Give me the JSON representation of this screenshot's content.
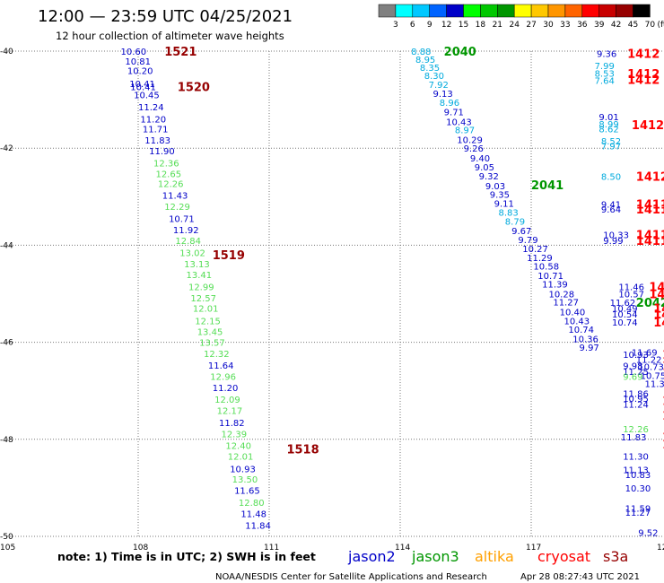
{
  "chart_data": {
    "type": "scatter",
    "title": "12:00 — 23:59 UTC 04/25/2021",
    "subtitle": "12 hour collection of altimeter wave heights",
    "colorbar": {
      "ticks": [
        "3",
        "6",
        "9",
        "12",
        "15",
        "18",
        "21",
        "24",
        "27",
        "30",
        "33",
        "36",
        "39",
        "42",
        "45",
        "70",
        "(ft)"
      ],
      "colors": [
        "#808080",
        "#00ffff",
        "#00c8ff",
        "#0064ff",
        "#0000c8",
        "#00ff00",
        "#00c800",
        "#009600",
        "#ffff00",
        "#ffc800",
        "#ff9600",
        "#ff6400",
        "#ff0000",
        "#c80000",
        "#960000",
        "#000000"
      ]
    },
    "x_ticks": [
      {
        "label": "105",
        "value": 105
      },
      {
        "label": "108",
        "value": 108
      },
      {
        "label": "111",
        "value": 111
      },
      {
        "label": "114",
        "value": 114
      },
      {
        "label": "117",
        "value": 117
      },
      {
        "label": "120",
        "value": 120
      }
    ],
    "y_ticks": [
      {
        "label": "-40",
        "value": -40
      },
      {
        "label": "-42",
        "value": -42
      },
      {
        "label": "-44",
        "value": -44
      },
      {
        "label": "-46",
        "value": -46
      },
      {
        "label": "-48",
        "value": -48
      },
      {
        "label": "-50",
        "value": -50
      }
    ],
    "xlim": [
      105,
      120
    ],
    "ylim": [
      -50,
      -40
    ],
    "grid": true,
    "satellites": [
      {
        "name": "jason2",
        "color": "#0000c8"
      },
      {
        "name": "jason3",
        "color": "#009600"
      },
      {
        "name": "altika",
        "color": "#ffa000"
      },
      {
        "name": "cryosat",
        "color": "#ff0000"
      },
      {
        "name": "s3a",
        "color": "#960000"
      }
    ],
    "time_labels": [
      {
        "text": "1521",
        "x": 108.6,
        "y": -40.0,
        "color": "#960000"
      },
      {
        "text": "1520",
        "x": 108.9,
        "y": -40.73,
        "color": "#960000"
      },
      {
        "text": "1519",
        "x": 109.7,
        "y": -44.2,
        "color": "#960000"
      },
      {
        "text": "1518",
        "x": 111.4,
        "y": -48.2,
        "color": "#960000"
      },
      {
        "text": "2040",
        "x": 115.0,
        "y": -40.0,
        "color": "#009600"
      },
      {
        "text": "2041",
        "x": 117.0,
        "y": -42.75,
        "color": "#009600"
      },
      {
        "text": "2042",
        "x": 119.4,
        "y": -45.18,
        "color": "#009600"
      },
      {
        "text": "1412",
        "x": 119.2,
        "y": -40.05,
        "color": "#ff0000"
      },
      {
        "text": "1412",
        "x": 119.2,
        "y": -40.46,
        "color": "#ff0000"
      },
      {
        "text": "1412",
        "x": 119.2,
        "y": -40.58,
        "color": "#ff0000"
      },
      {
        "text": "1412",
        "x": 119.3,
        "y": -41.52,
        "color": "#ff0000"
      },
      {
        "text": "1412",
        "x": 119.4,
        "y": -42.58,
        "color": "#ff0000"
      },
      {
        "text": "1411",
        "x": 119.4,
        "y": -43.15,
        "color": "#ff0000"
      },
      {
        "text": "1411",
        "x": 119.4,
        "y": -43.25,
        "color": "#ff0000"
      },
      {
        "text": "1411",
        "x": 119.4,
        "y": -43.78,
        "color": "#ff0000"
      },
      {
        "text": "1411",
        "x": 119.4,
        "y": -43.9,
        "color": "#ff0000"
      },
      {
        "text": "1411",
        "x": 119.7,
        "y": -44.85,
        "color": "#ff0000"
      },
      {
        "text": "1411",
        "x": 119.7,
        "y": -45.0,
        "color": "#ff0000"
      },
      {
        "text": "1411",
        "x": 119.8,
        "y": -45.3,
        "color": "#ff0000"
      },
      {
        "text": "1411",
        "x": 119.8,
        "y": -45.42,
        "color": "#ff0000"
      },
      {
        "text": "1411",
        "x": 119.8,
        "y": -45.58,
        "color": "#ff0000"
      },
      {
        "text": "1411",
        "x": 120.0,
        "y": -46.25,
        "color": "#ff0000"
      },
      {
        "text": "141",
        "x": 120.0,
        "y": -46.48,
        "color": "#ff0000"
      },
      {
        "text": "141",
        "x": 120.0,
        "y": -47.2,
        "color": "#ff0000"
      },
      {
        "text": "141",
        "x": 120.0,
        "y": -47.5,
        "color": "#ff0000"
      },
      {
        "text": "141",
        "x": 120.0,
        "y": -47.95,
        "color": "#ff0000"
      },
      {
        "text": "14",
        "x": 120.0,
        "y": -48.1,
        "color": "#ff0000"
      },
      {
        "text": "14",
        "x": 120.1,
        "y": -48.78,
        "color": "#ff0000"
      },
      {
        "text": "1!",
        "x": 120.1,
        "y": -49.5,
        "color": "#ff0000"
      }
    ],
    "points": [
      {
        "v": "10.60",
        "x": 107.6,
        "y": -40.0,
        "color": "#0000c8"
      },
      {
        "v": "10.81",
        "x": 107.7,
        "y": -40.2,
        "color": "#0000c8"
      },
      {
        "v": "10.20",
        "x": 107.75,
        "y": -40.4,
        "color": "#0000c8"
      },
      {
        "v": "10.41",
        "x": 107.8,
        "y": -40.67,
        "color": "#0000c8"
      },
      {
        "v": "10.41",
        "x": 107.82,
        "y": -40.73,
        "color": "#0000c8"
      },
      {
        "v": "10.45",
        "x": 107.9,
        "y": -40.9,
        "color": "#0000c8"
      },
      {
        "v": "11.24",
        "x": 108.0,
        "y": -41.15,
        "color": "#0000c8"
      },
      {
        "v": "11.20",
        "x": 108.05,
        "y": -41.4,
        "color": "#0000c8"
      },
      {
        "v": "11.71",
        "x": 108.1,
        "y": -41.6,
        "color": "#0000c8"
      },
      {
        "v": "11.83",
        "x": 108.15,
        "y": -41.83,
        "color": "#0000c8"
      },
      {
        "v": "11.90",
        "x": 108.25,
        "y": -42.05,
        "color": "#0000c8"
      },
      {
        "v": "12.36",
        "x": 108.35,
        "y": -42.3,
        "color": "#55dd55"
      },
      {
        "v": "12.65",
        "x": 108.4,
        "y": -42.52,
        "color": "#55dd55"
      },
      {
        "v": "12.26",
        "x": 108.45,
        "y": -42.73,
        "color": "#55dd55"
      },
      {
        "v": "11.43",
        "x": 108.55,
        "y": -42.97,
        "color": "#0000c8"
      },
      {
        "v": "12.29",
        "x": 108.6,
        "y": -43.2,
        "color": "#55dd55"
      },
      {
        "v": "10.71",
        "x": 108.7,
        "y": -43.45,
        "color": "#0000c8"
      },
      {
        "v": "11.92",
        "x": 108.8,
        "y": -43.68,
        "color": "#0000c8"
      },
      {
        "v": "12.84",
        "x": 108.85,
        "y": -43.9,
        "color": "#55dd55"
      },
      {
        "v": "13.02",
        "x": 108.95,
        "y": -44.15,
        "color": "#55dd55"
      },
      {
        "v": "13.13",
        "x": 109.05,
        "y": -44.38,
        "color": "#55dd55"
      },
      {
        "v": "13.41",
        "x": 109.1,
        "y": -44.6,
        "color": "#55dd55"
      },
      {
        "v": "12.99",
        "x": 109.15,
        "y": -44.85,
        "color": "#55dd55"
      },
      {
        "v": "12.57",
        "x": 109.2,
        "y": -45.08,
        "color": "#55dd55"
      },
      {
        "v": "12.01",
        "x": 109.25,
        "y": -45.3,
        "color": "#55dd55"
      },
      {
        "v": "12.15",
        "x": 109.3,
        "y": -45.55,
        "color": "#55dd55"
      },
      {
        "v": "13.45",
        "x": 109.35,
        "y": -45.78,
        "color": "#55dd55"
      },
      {
        "v": "13.57",
        "x": 109.4,
        "y": -46.0,
        "color": "#55dd55"
      },
      {
        "v": "12.32",
        "x": 109.5,
        "y": -46.23,
        "color": "#55dd55"
      },
      {
        "v": "11.64",
        "x": 109.6,
        "y": -46.47,
        "color": "#0000c8"
      },
      {
        "v": "12.96",
        "x": 109.65,
        "y": -46.7,
        "color": "#55dd55"
      },
      {
        "v": "11.20",
        "x": 109.7,
        "y": -46.93,
        "color": "#0000c8"
      },
      {
        "v": "12.09",
        "x": 109.75,
        "y": -47.17,
        "color": "#55dd55"
      },
      {
        "v": "12.17",
        "x": 109.8,
        "y": -47.4,
        "color": "#55dd55"
      },
      {
        "v": "11.82",
        "x": 109.85,
        "y": -47.65,
        "color": "#0000c8"
      },
      {
        "v": "12.39",
        "x": 109.9,
        "y": -47.88,
        "color": "#55dd55"
      },
      {
        "v": "12.40",
        "x": 110.0,
        "y": -48.12,
        "color": "#55dd55"
      },
      {
        "v": "12.01",
        "x": 110.05,
        "y": -48.35,
        "color": "#55dd55"
      },
      {
        "v": "10.93",
        "x": 110.1,
        "y": -48.6,
        "color": "#0000c8"
      },
      {
        "v": "13.50",
        "x": 110.15,
        "y": -48.82,
        "color": "#55dd55"
      },
      {
        "v": "11.65",
        "x": 110.2,
        "y": -49.05,
        "color": "#0000c8"
      },
      {
        "v": "12.80",
        "x": 110.3,
        "y": -49.3,
        "color": "#55dd55"
      },
      {
        "v": "11.48",
        "x": 110.35,
        "y": -49.53,
        "color": "#0000c8"
      },
      {
        "v": "11.84",
        "x": 110.45,
        "y": -49.77,
        "color": "#0000c8"
      },
      {
        "v": "8.88",
        "x": 114.25,
        "y": -40.0,
        "color": "#00aadd"
      },
      {
        "v": "8.95",
        "x": 114.35,
        "y": -40.17,
        "color": "#00aadd"
      },
      {
        "v": "8.35",
        "x": 114.45,
        "y": -40.33,
        "color": "#00aadd"
      },
      {
        "v": "8.30",
        "x": 114.55,
        "y": -40.5,
        "color": "#00aadd"
      },
      {
        "v": "7.92",
        "x": 114.65,
        "y": -40.68,
        "color": "#00aadd"
      },
      {
        "v": "9.13",
        "x": 114.75,
        "y": -40.87,
        "color": "#0000c8"
      },
      {
        "v": "8.96",
        "x": 114.9,
        "y": -41.05,
        "color": "#00aadd"
      },
      {
        "v": "9.71",
        "x": 115.0,
        "y": -41.25,
        "color": "#0000c8"
      },
      {
        "v": "10.43",
        "x": 115.05,
        "y": -41.45,
        "color": "#0000c8"
      },
      {
        "v": "8.97",
        "x": 115.25,
        "y": -41.62,
        "color": "#00aadd"
      },
      {
        "v": "10.29",
        "x": 115.3,
        "y": -41.82,
        "color": "#0000c8"
      },
      {
        "v": "9.26",
        "x": 115.45,
        "y": -42.0,
        "color": "#0000c8"
      },
      {
        "v": "9.40",
        "x": 115.6,
        "y": -42.2,
        "color": "#0000c8"
      },
      {
        "v": "9.05",
        "x": 115.7,
        "y": -42.38,
        "color": "#0000c8"
      },
      {
        "v": "9.32",
        "x": 115.8,
        "y": -42.57,
        "color": "#0000c8"
      },
      {
        "v": "9.03",
        "x": 115.95,
        "y": -42.77,
        "color": "#0000c8"
      },
      {
        "v": "9.35",
        "x": 116.05,
        "y": -42.95,
        "color": "#0000c8"
      },
      {
        "v": "9.11",
        "x": 116.15,
        "y": -43.13,
        "color": "#0000c8"
      },
      {
        "v": "8.83",
        "x": 116.25,
        "y": -43.32,
        "color": "#00aadd"
      },
      {
        "v": "8.79",
        "x": 116.4,
        "y": -43.5,
        "color": "#00aadd"
      },
      {
        "v": "9.67",
        "x": 116.55,
        "y": -43.7,
        "color": "#0000c8"
      },
      {
        "v": "9.79",
        "x": 116.7,
        "y": -43.88,
        "color": "#0000c8"
      },
      {
        "v": "10.27",
        "x": 116.8,
        "y": -44.07,
        "color": "#0000c8"
      },
      {
        "v": "11.29",
        "x": 116.9,
        "y": -44.25,
        "color": "#0000c8"
      },
      {
        "v": "10.58",
        "x": 117.05,
        "y": -44.43,
        "color": "#0000c8"
      },
      {
        "v": "10.71",
        "x": 117.15,
        "y": -44.62,
        "color": "#0000c8"
      },
      {
        "v": "11.39",
        "x": 117.25,
        "y": -44.8,
        "color": "#0000c8"
      },
      {
        "v": "10.28",
        "x": 117.4,
        "y": -45.0,
        "color": "#0000c8"
      },
      {
        "v": "11.27",
        "x": 117.5,
        "y": -45.17,
        "color": "#0000c8"
      },
      {
        "v": "10.40",
        "x": 117.65,
        "y": -45.37,
        "color": "#0000c8"
      },
      {
        "v": "10.43",
        "x": 117.75,
        "y": -45.55,
        "color": "#0000c8"
      },
      {
        "v": "10.74",
        "x": 117.85,
        "y": -45.73,
        "color": "#0000c8"
      },
      {
        "v": "10.36",
        "x": 117.95,
        "y": -45.92,
        "color": "#0000c8"
      },
      {
        "v": "9.97",
        "x": 118.1,
        "y": -46.1,
        "color": "#0000c8"
      },
      {
        "v": "9.36",
        "x": 118.5,
        "y": -40.05,
        "color": "#0000c8"
      },
      {
        "v": "7.99",
        "x": 118.45,
        "y": -40.3,
        "color": "#00aadd"
      },
      {
        "v": "8.53",
        "x": 118.45,
        "y": -40.45,
        "color": "#00aadd"
      },
      {
        "v": "7.64",
        "x": 118.45,
        "y": -40.6,
        "color": "#00aadd"
      },
      {
        "v": "9.01",
        "x": 118.55,
        "y": -41.35,
        "color": "#0000c8"
      },
      {
        "v": "8.99",
        "x": 118.55,
        "y": -41.5,
        "color": "#00aadd"
      },
      {
        "v": "8.62",
        "x": 118.55,
        "y": -41.6,
        "color": "#00aadd"
      },
      {
        "v": "8.52",
        "x": 118.6,
        "y": -41.85,
        "color": "#00aadd"
      },
      {
        "v": "7.97",
        "x": 118.6,
        "y": -41.95,
        "color": "#00aadd"
      },
      {
        "v": "8.50",
        "x": 118.6,
        "y": -42.58,
        "color": "#00aadd"
      },
      {
        "v": "9.41",
        "x": 118.6,
        "y": -43.15,
        "color": "#0000c8"
      },
      {
        "v": "9.64",
        "x": 118.6,
        "y": -43.25,
        "color": "#0000c8"
      },
      {
        "v": "10.33",
        "x": 118.65,
        "y": -43.78,
        "color": "#0000c8"
      },
      {
        "v": "9.99",
        "x": 118.65,
        "y": -43.9,
        "color": "#0000c8"
      },
      {
        "v": "11.46",
        "x": 119.0,
        "y": -44.85,
        "color": "#0000c8"
      },
      {
        "v": "10.57",
        "x": 119.0,
        "y": -45.0,
        "color": "#0000c8"
      },
      {
        "v": "11.62",
        "x": 118.8,
        "y": -45.18,
        "color": "#0000c8"
      },
      {
        "v": "10.49",
        "x": 118.85,
        "y": -45.3,
        "color": "#0000c8"
      },
      {
        "v": "10.54",
        "x": 118.85,
        "y": -45.42,
        "color": "#0000c8"
      },
      {
        "v": "10.74",
        "x": 118.85,
        "y": -45.58,
        "color": "#0000c8"
      },
      {
        "v": "11.69",
        "x": 119.3,
        "y": -46.2,
        "color": "#0000c8"
      },
      {
        "v": "10.93",
        "x": 119.1,
        "y": -46.25,
        "color": "#0000c8"
      },
      {
        "v": "11.22",
        "x": 119.4,
        "y": -46.35,
        "color": "#0000c8"
      },
      {
        "v": "9.98",
        "x": 119.1,
        "y": -46.48,
        "color": "#0000c8"
      },
      {
        "v": "10.73",
        "x": 119.45,
        "y": -46.5,
        "color": "#0000c8"
      },
      {
        "v": "11.25",
        "x": 119.1,
        "y": -46.6,
        "color": "#0000c8"
      },
      {
        "v": "10.75",
        "x": 119.5,
        "y": -46.68,
        "color": "#0000c8"
      },
      {
        "v": "9.69",
        "x": 119.1,
        "y": -46.7,
        "color": "#55dd55"
      },
      {
        "v": "11.3",
        "x": 119.6,
        "y": -46.85,
        "color": "#0000c8"
      },
      {
        "v": "11.86",
        "x": 119.1,
        "y": -47.05,
        "color": "#0000c8"
      },
      {
        "v": "10.95",
        "x": 119.1,
        "y": -47.15,
        "color": "#0000c8"
      },
      {
        "v": "11.24",
        "x": 119.1,
        "y": -47.27,
        "color": "#0000c8"
      },
      {
        "v": "12.26",
        "x": 119.1,
        "y": -47.78,
        "color": "#55dd55"
      },
      {
        "v": "11.83",
        "x": 119.05,
        "y": -47.95,
        "color": "#0000c8"
      },
      {
        "v": "11.30",
        "x": 119.1,
        "y": -48.35,
        "color": "#0000c8"
      },
      {
        "v": "11.13",
        "x": 119.1,
        "y": -48.62,
        "color": "#0000c8"
      },
      {
        "v": "10.83",
        "x": 119.15,
        "y": -48.72,
        "color": "#0000c8"
      },
      {
        "v": "10.30",
        "x": 119.15,
        "y": -49.0,
        "color": "#0000c8"
      },
      {
        "v": "11.59",
        "x": 119.15,
        "y": -49.42,
        "color": "#0000c8"
      },
      {
        "v": "11.27",
        "x": 119.15,
        "y": -49.5,
        "color": "#0000c8"
      },
      {
        "v": "9.52",
        "x": 119.45,
        "y": -49.92,
        "color": "#0000c8"
      }
    ]
  },
  "footer": {
    "note": "note: 1) Time is in UTC; 2) SWH is in feet",
    "credit": "NOAA/NESDIS Center for Satellite Applications and Research",
    "timestamp": "Apr 28 08:27:43 UTC 2021"
  }
}
